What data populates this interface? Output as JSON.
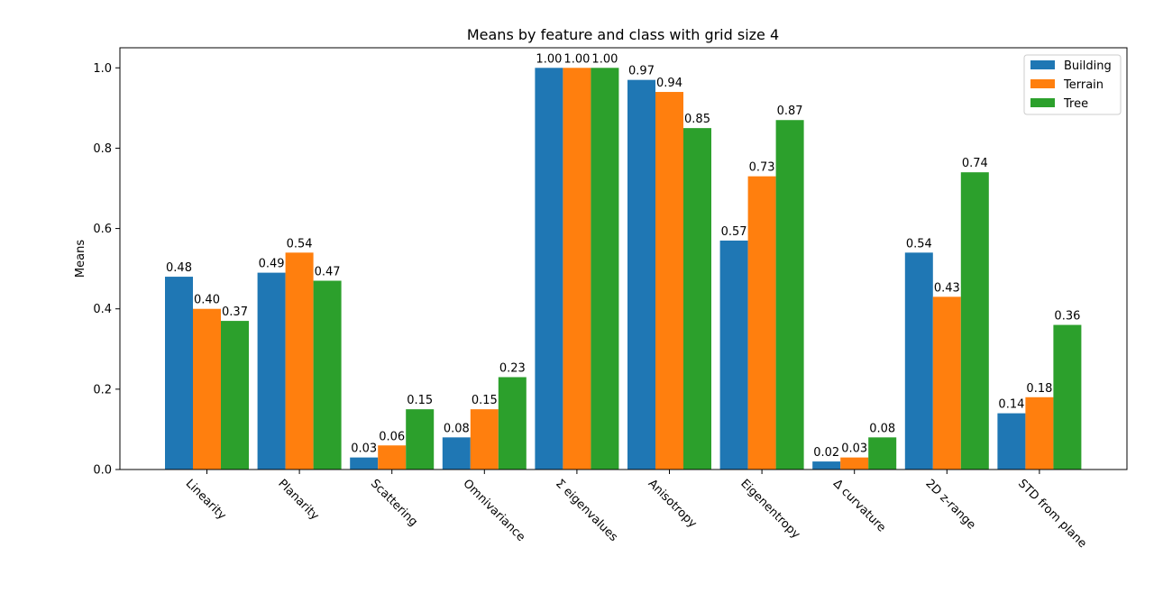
{
  "chart_data": {
    "type": "bar",
    "title": "Means by feature and class with grid size 4",
    "xlabel": "",
    "ylabel": "Means",
    "ylim": [
      0,
      1.05
    ],
    "yticks": [
      "0.0",
      "0.2",
      "0.4",
      "0.6",
      "0.8",
      "1.0"
    ],
    "categories": [
      "Linearity",
      "Planarity",
      "Scattering",
      "Omnivariance",
      "Σ eigenvalues",
      "Anisotropy",
      "Eigenentropy",
      "Δ curvature",
      "2D z-range",
      "STD from plane"
    ],
    "series": [
      {
        "name": "Building",
        "color": "#1f77b4",
        "values": [
          0.48,
          0.49,
          0.03,
          0.08,
          1.0,
          0.97,
          0.57,
          0.02,
          0.54,
          0.14
        ]
      },
      {
        "name": "Terrain",
        "color": "#ff7f0e",
        "values": [
          0.4,
          0.54,
          0.06,
          0.15,
          1.0,
          0.94,
          0.73,
          0.03,
          0.43,
          0.18
        ]
      },
      {
        "name": "Tree",
        "color": "#2ca02c",
        "values": [
          0.37,
          0.47,
          0.15,
          0.23,
          1.0,
          0.85,
          0.87,
          0.08,
          0.74,
          0.36
        ]
      }
    ],
    "legend_position": "top-right",
    "grid": false
  }
}
